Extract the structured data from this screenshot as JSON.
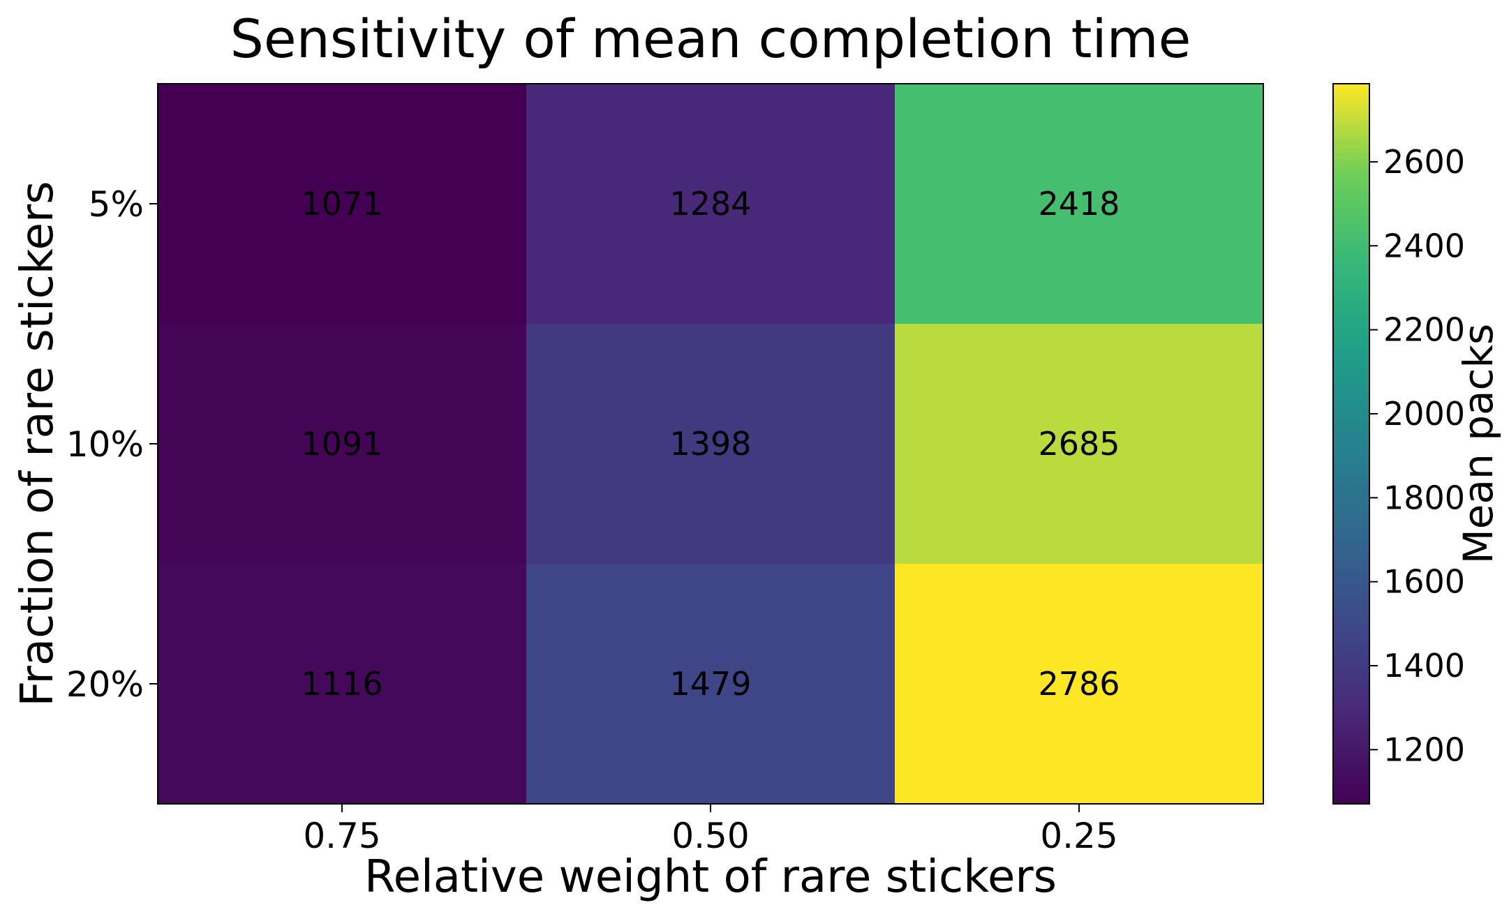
{
  "chart_data": {
    "type": "heatmap",
    "title": "Sensitivity of mean completion time",
    "xlabel": "Relative weight of rare stickers",
    "ylabel": "Fraction of rare stickers",
    "x_categories": [
      "0.75",
      "0.50",
      "0.25"
    ],
    "y_categories": [
      "5%",
      "10%",
      "20%"
    ],
    "values": [
      [
        1071,
        1284,
        2418
      ],
      [
        1091,
        1398,
        2685
      ],
      [
        1116,
        1479,
        2786
      ]
    ],
    "colorbar": {
      "label": "Mean packs",
      "range": [
        1071,
        2786
      ],
      "ticks": [
        1200,
        1400,
        1600,
        1800,
        2000,
        2200,
        2400,
        2600
      ],
      "colormap": "viridis"
    }
  }
}
